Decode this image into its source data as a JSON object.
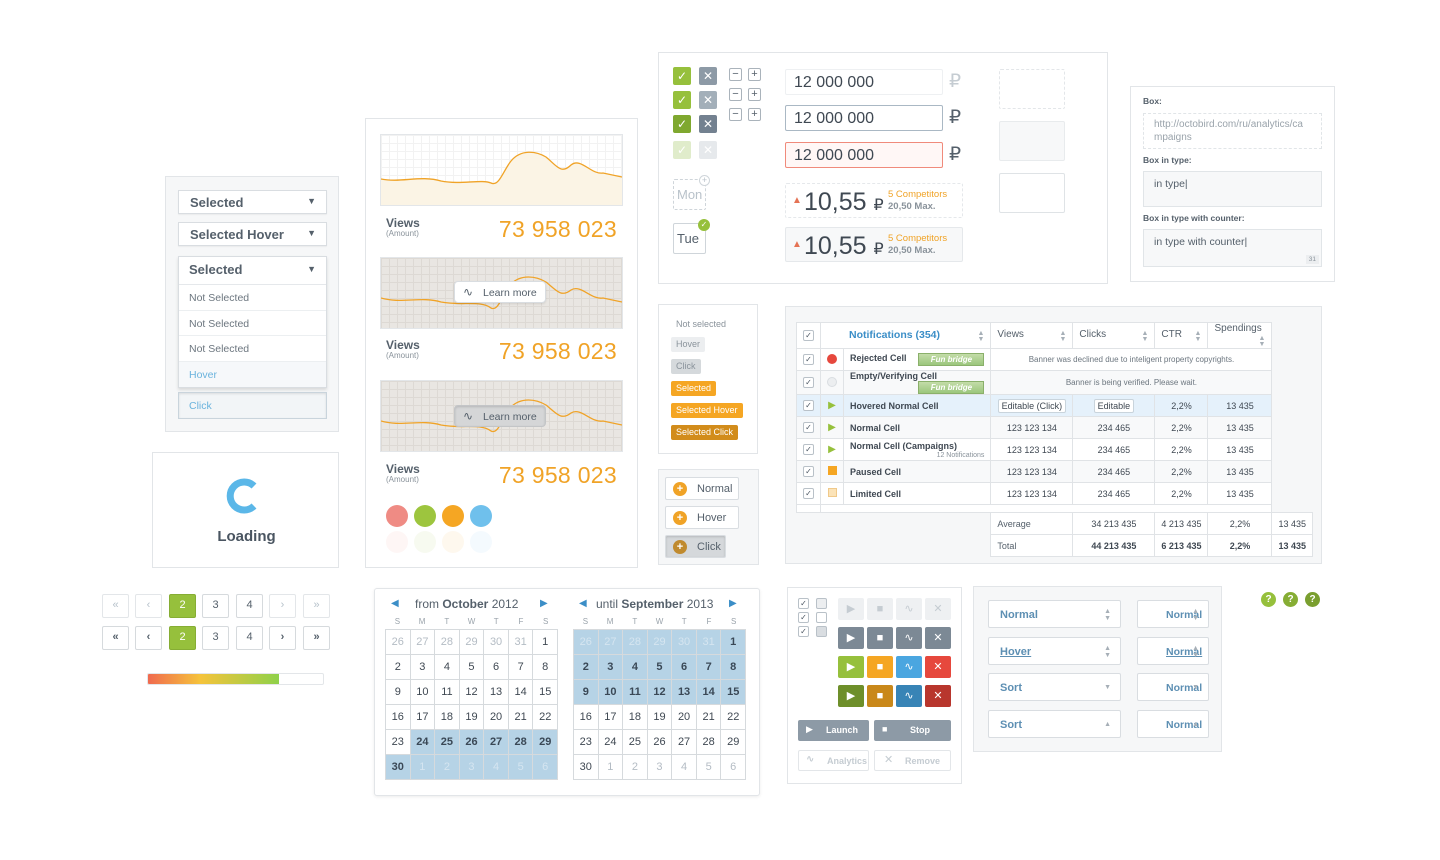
{
  "dropdown": {
    "selected": "Selected",
    "selected_hover": "Selected Hover",
    "open_header": "Selected",
    "items": [
      "Not Selected",
      "Not Selected",
      "Not Selected",
      "Hover"
    ],
    "click": "Click",
    "arrow": "▼"
  },
  "loading": {
    "label": "Loading"
  },
  "cards": [
    {
      "views": "Views",
      "amount": "(Amount)",
      "number": "73 958 023"
    },
    {
      "views": "Views",
      "amount": "(Amount)",
      "number": "73 958 023",
      "learn_more": "Learn more"
    },
    {
      "views": "Views",
      "amount": "(Amount)",
      "number": "73 958 023",
      "learn_more": "Learn more"
    }
  ],
  "color_dots": [
    "#ef8b84",
    "#9dc53e",
    "#f5a623",
    "#6fc0ec"
  ],
  "pagination": {
    "top": [
      "«",
      "‹",
      "2",
      "3",
      "4",
      "›",
      "»"
    ],
    "bottom": [
      "«",
      "‹",
      "2",
      "3",
      "4",
      "›",
      "»"
    ],
    "active": "2"
  },
  "progress": {
    "value": 0.75
  },
  "calendar_from": {
    "prefix": "from",
    "month": "October",
    "year": "2012",
    "weekdays": [
      "S",
      "M",
      "T",
      "W",
      "T",
      "F",
      "S"
    ],
    "days": [
      "26",
      "27",
      "28",
      "29",
      "30",
      "31",
      "1",
      "2",
      "3",
      "4",
      "5",
      "6",
      "7",
      "8",
      "9",
      "10",
      "11",
      "12",
      "13",
      "14",
      "15",
      "16",
      "17",
      "18",
      "19",
      "20",
      "21",
      "22",
      "23",
      "24",
      "25",
      "26",
      "27",
      "28",
      "29",
      "30",
      "1",
      "2",
      "3",
      "4",
      "5",
      "6"
    ]
  },
  "calendar_until": {
    "prefix": "until",
    "month": "September",
    "year": "2013",
    "weekdays": [
      "S",
      "M",
      "T",
      "W",
      "T",
      "F",
      "S"
    ],
    "days": [
      "26",
      "27",
      "28",
      "29",
      "30",
      "31",
      "1",
      "2",
      "3",
      "4",
      "5",
      "6",
      "7",
      "8",
      "9",
      "10",
      "11",
      "12",
      "13",
      "14",
      "15",
      "16",
      "17",
      "18",
      "19",
      "20",
      "21",
      "22",
      "23",
      "24",
      "25",
      "26",
      "27",
      "28",
      "29",
      "30",
      "1",
      "2",
      "3",
      "4",
      "5",
      "6"
    ]
  },
  "inputs": {
    "money": [
      "12 000 000",
      "12 000 000",
      "12 000 000"
    ],
    "currency": "₽",
    "rate": "10,55",
    "competitors": "5 Competitors",
    "max": "20,50 Max.",
    "day_mon": "Mon",
    "day_tue": "Tue"
  },
  "tags": [
    "Not selected",
    "Hover",
    "Click",
    "Selected",
    "Selected Hover",
    "Selected Click"
  ],
  "normal_buttons": [
    "Normal",
    "Hover",
    "Click"
  ],
  "box": {
    "box_label": "Box:",
    "box_value": "http://octobird.com/ru/analytics/campaigns",
    "type_label": "Box in type:",
    "type_value": "in type|",
    "counter_label": "Box in type with counter:",
    "counter_value": "in type with counter|",
    "counter": "31"
  },
  "table": {
    "headers": [
      "Notifications (354)",
      "Views",
      "Clicks",
      "CTR",
      "Spendings"
    ],
    "rows": [
      {
        "name": "Rejected Cell",
        "status": "rejected",
        "banner": "Fun bridge",
        "note": "Banner was declined due to inteligent property copyrights."
      },
      {
        "name": "Empty/Verifying Cell",
        "status": "empty",
        "banner": "Fun bridge",
        "note": "Banner is being verified. Please wait."
      },
      {
        "name": "Hovered Normal Cell",
        "status": "play",
        "views": "Editable (Click)",
        "clicks": "Editable",
        "ctr": "2,2%",
        "spend": "13 435"
      },
      {
        "name": "Normal Cell",
        "status": "play",
        "views": "123 123 134",
        "clicks": "234 465",
        "ctr": "2,2%",
        "spend": "13 435"
      },
      {
        "name": "Normal Cell (Campaigns)",
        "extra": "12 Notifications",
        "status": "play",
        "views": "123 123 134",
        "clicks": "234 465",
        "ctr": "2,2%",
        "spend": "13 435"
      },
      {
        "name": "Paused Cell",
        "status": "paused",
        "views": "123 123 134",
        "clicks": "234 465",
        "ctr": "2,2%",
        "spend": "13 435"
      },
      {
        "name": "Limited Cell",
        "status": "limited",
        "views": "123 123 134",
        "clicks": "234 465",
        "ctr": "2,2%",
        "spend": "13 435"
      }
    ],
    "average": {
      "label": "Average",
      "views": "34 213 435",
      "clicks": "4 213 435",
      "ctr": "2,2%",
      "spend": "13 435"
    },
    "total": {
      "label": "Total",
      "views": "44 213 435",
      "clicks": "6 213 435",
      "ctr": "2,2%",
      "spend": "13 435"
    }
  },
  "controls": {
    "launch": "Launch",
    "stop": "Stop",
    "analytics": "Analytics",
    "remove": "Remove"
  },
  "selects": {
    "left": [
      "Normal",
      "Hover",
      "Sort",
      "Sort"
    ],
    "right": [
      "Normal",
      "Normal",
      "Normal",
      "Normal"
    ]
  },
  "help": "?"
}
